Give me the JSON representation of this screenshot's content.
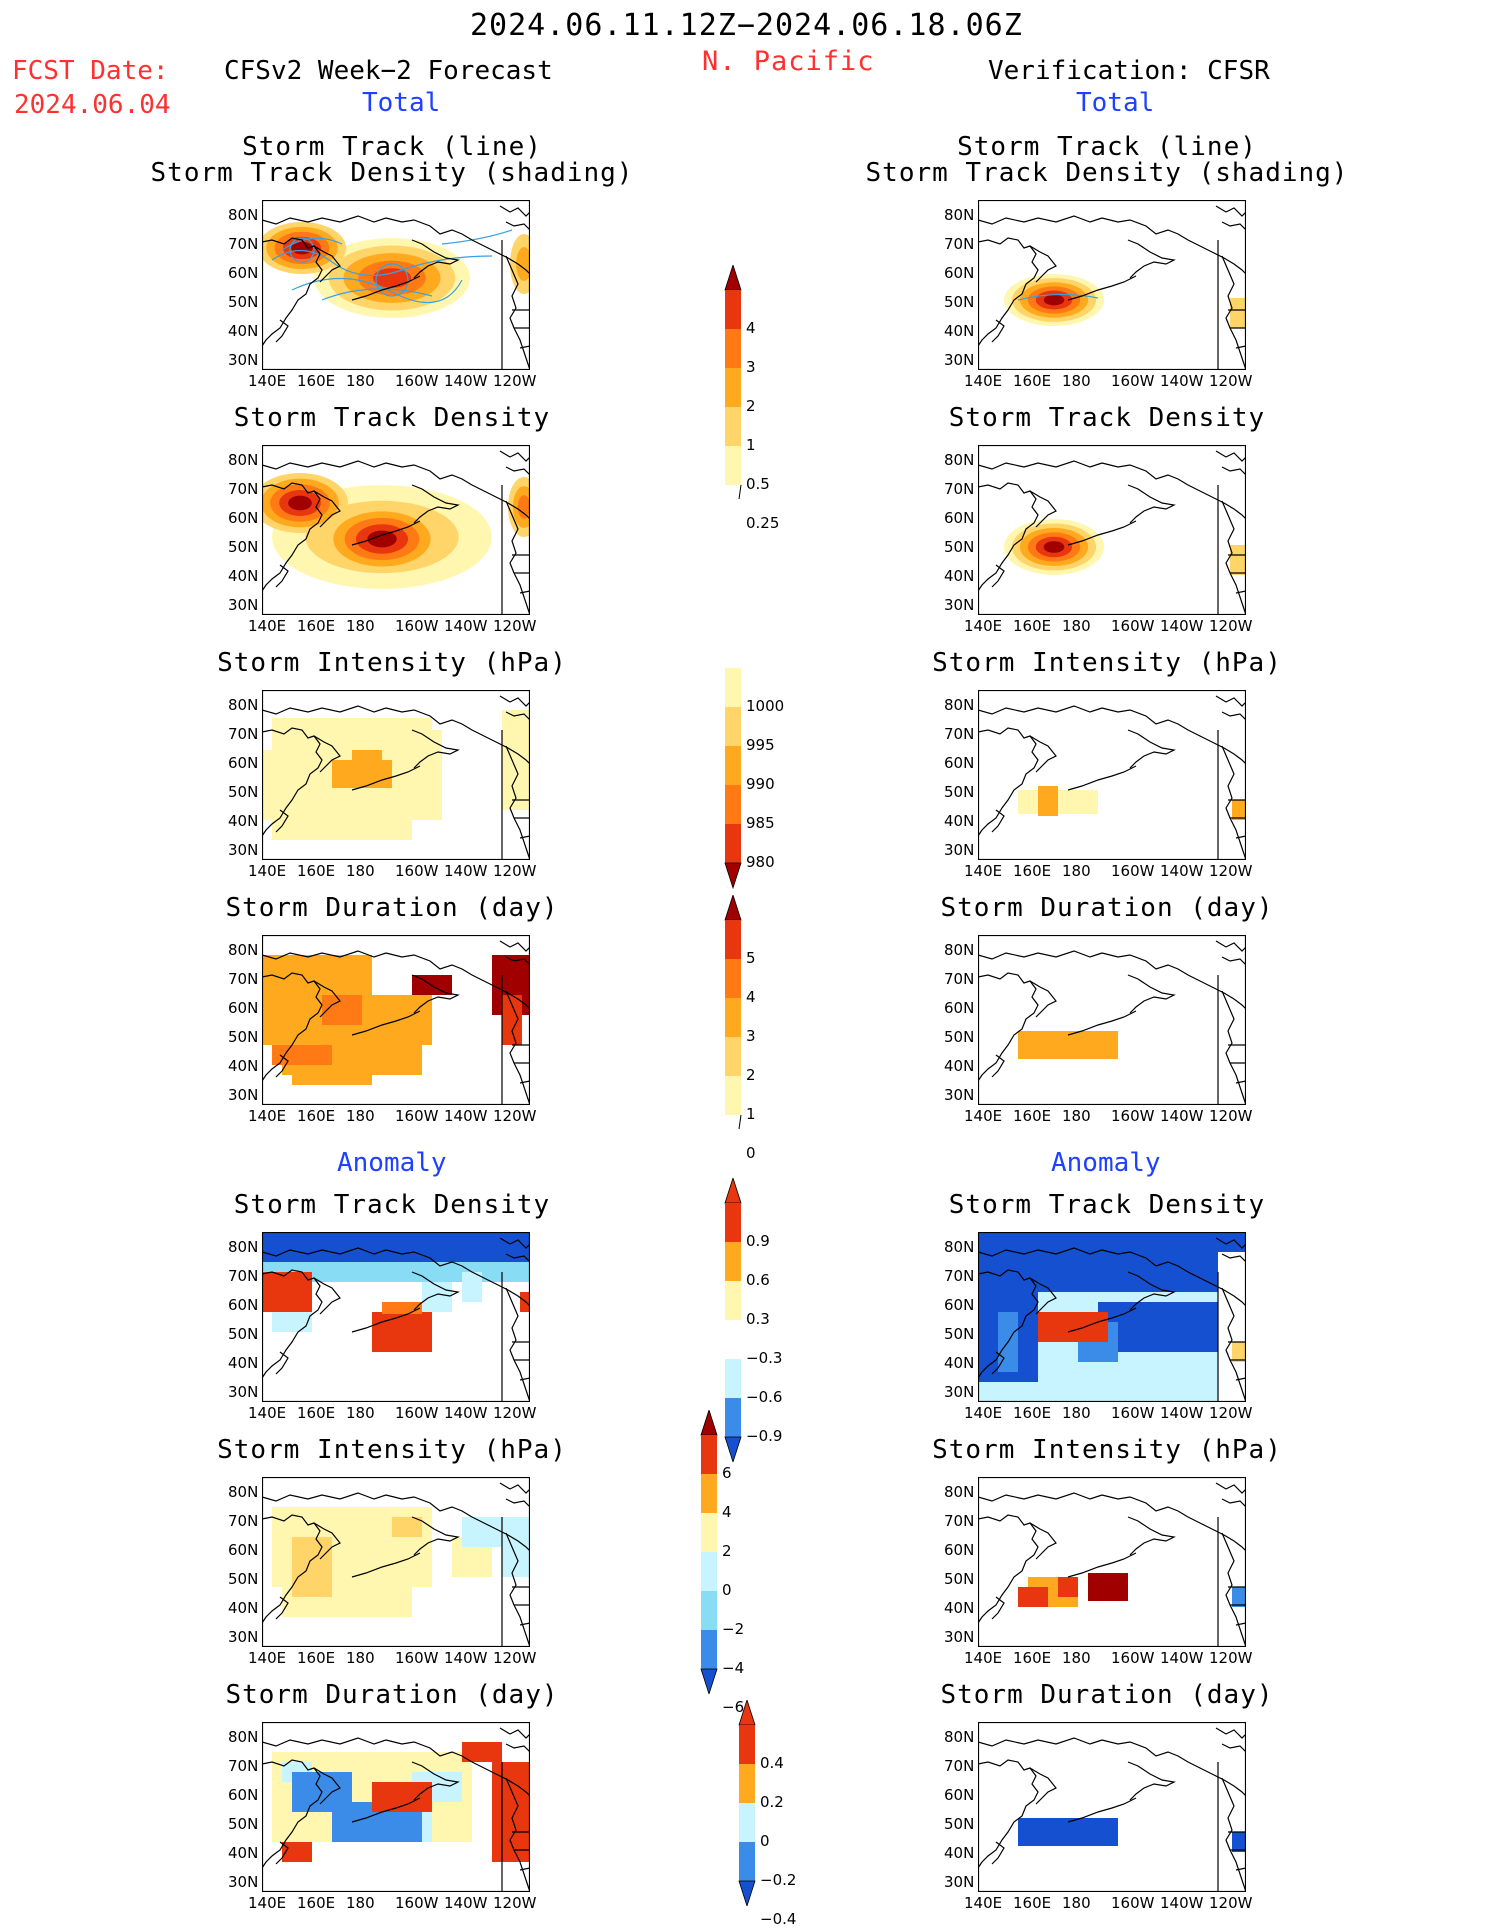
{
  "header": {
    "period": "2024.06.11.12Z−2024.06.18.06Z",
    "region": "N. Pacific",
    "fcst_label": "FCST Date:",
    "fcst_date": "2024.06.04",
    "left_title": "CFSv2 Week−2 Forecast",
    "right_title": "Verification: CFSR",
    "total_label": "Total",
    "anomaly_label": "Anomaly"
  },
  "panels": {
    "track": [
      "Storm Track (line)",
      "Storm Track Density (shading)"
    ],
    "density": "Storm Track Density",
    "intensity": "Storm Intensity (hPa)",
    "duration": "Storm Duration (day)"
  },
  "axes": {
    "lat_ticks": [
      "80N",
      "70N",
      "60N",
      "50N",
      "40N",
      "30N"
    ],
    "lon_ticks": [
      "140E",
      "160E",
      "180",
      "160W",
      "140W",
      "120W"
    ]
  },
  "colorbars": {
    "density": [
      "4",
      "3",
      "2",
      "1",
      "0.5",
      "0.25"
    ],
    "intensity": [
      "1000",
      "995",
      "990",
      "985",
      "980"
    ],
    "duration": [
      "5",
      "4",
      "3",
      "2",
      "1",
      "0"
    ],
    "density_anom": [
      "0.9",
      "0.6",
      "0.3",
      "−0.3",
      "−0.6",
      "−0.9"
    ],
    "intensity_anom": [
      "6",
      "4",
      "2",
      "0",
      "−2",
      "−4",
      "−6"
    ],
    "duration_anom": [
      "0.4",
      "0.2",
      "0",
      "−0.2",
      "−0.4"
    ]
  },
  "colors": {
    "warm": [
      "#fff7b0",
      "#ffd56a",
      "#ffaa1e",
      "#ff7a14",
      "#e8360f",
      "#a00000"
    ],
    "cool": [
      "#c8f4ff",
      "#88ddf5",
      "#3a8ce8",
      "#1550d0"
    ]
  }
}
